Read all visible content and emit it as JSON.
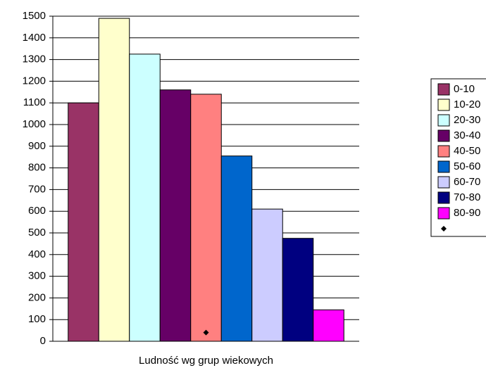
{
  "chart_data": {
    "type": "bar",
    "categories": [
      "Ludność wg grup wiekowych"
    ],
    "series": [
      {
        "name": "0-10",
        "color": "#993366",
        "values": [
          1100
        ]
      },
      {
        "name": "10-20",
        "color": "#ffffcc",
        "values": [
          1490
        ]
      },
      {
        "name": "20-30",
        "color": "#ccffff",
        "values": [
          1325
        ]
      },
      {
        "name": "30-40",
        "color": "#660066",
        "values": [
          1160
        ]
      },
      {
        "name": "40-50",
        "color": "#ff8080",
        "values": [
          1140
        ]
      },
      {
        "name": "50-60",
        "color": "#0066cc",
        "values": [
          855
        ]
      },
      {
        "name": "60-70",
        "color": "#ccccff",
        "values": [
          610
        ]
      },
      {
        "name": "70-80",
        "color": "#000080",
        "values": [
          475
        ]
      },
      {
        "name": "80-90",
        "color": "#ff00ff",
        "values": [
          145
        ]
      },
      {
        "type": "scatter",
        "marker": "diamond",
        "color": "#000000",
        "values": [
          40
        ]
      }
    ],
    "ylim": [
      0,
      1500
    ],
    "yticks": [
      0,
      100,
      200,
      300,
      400,
      500,
      600,
      700,
      800,
      900,
      1000,
      1100,
      1200,
      1300,
      1400,
      1500
    ],
    "grid": true,
    "legend": "right"
  }
}
